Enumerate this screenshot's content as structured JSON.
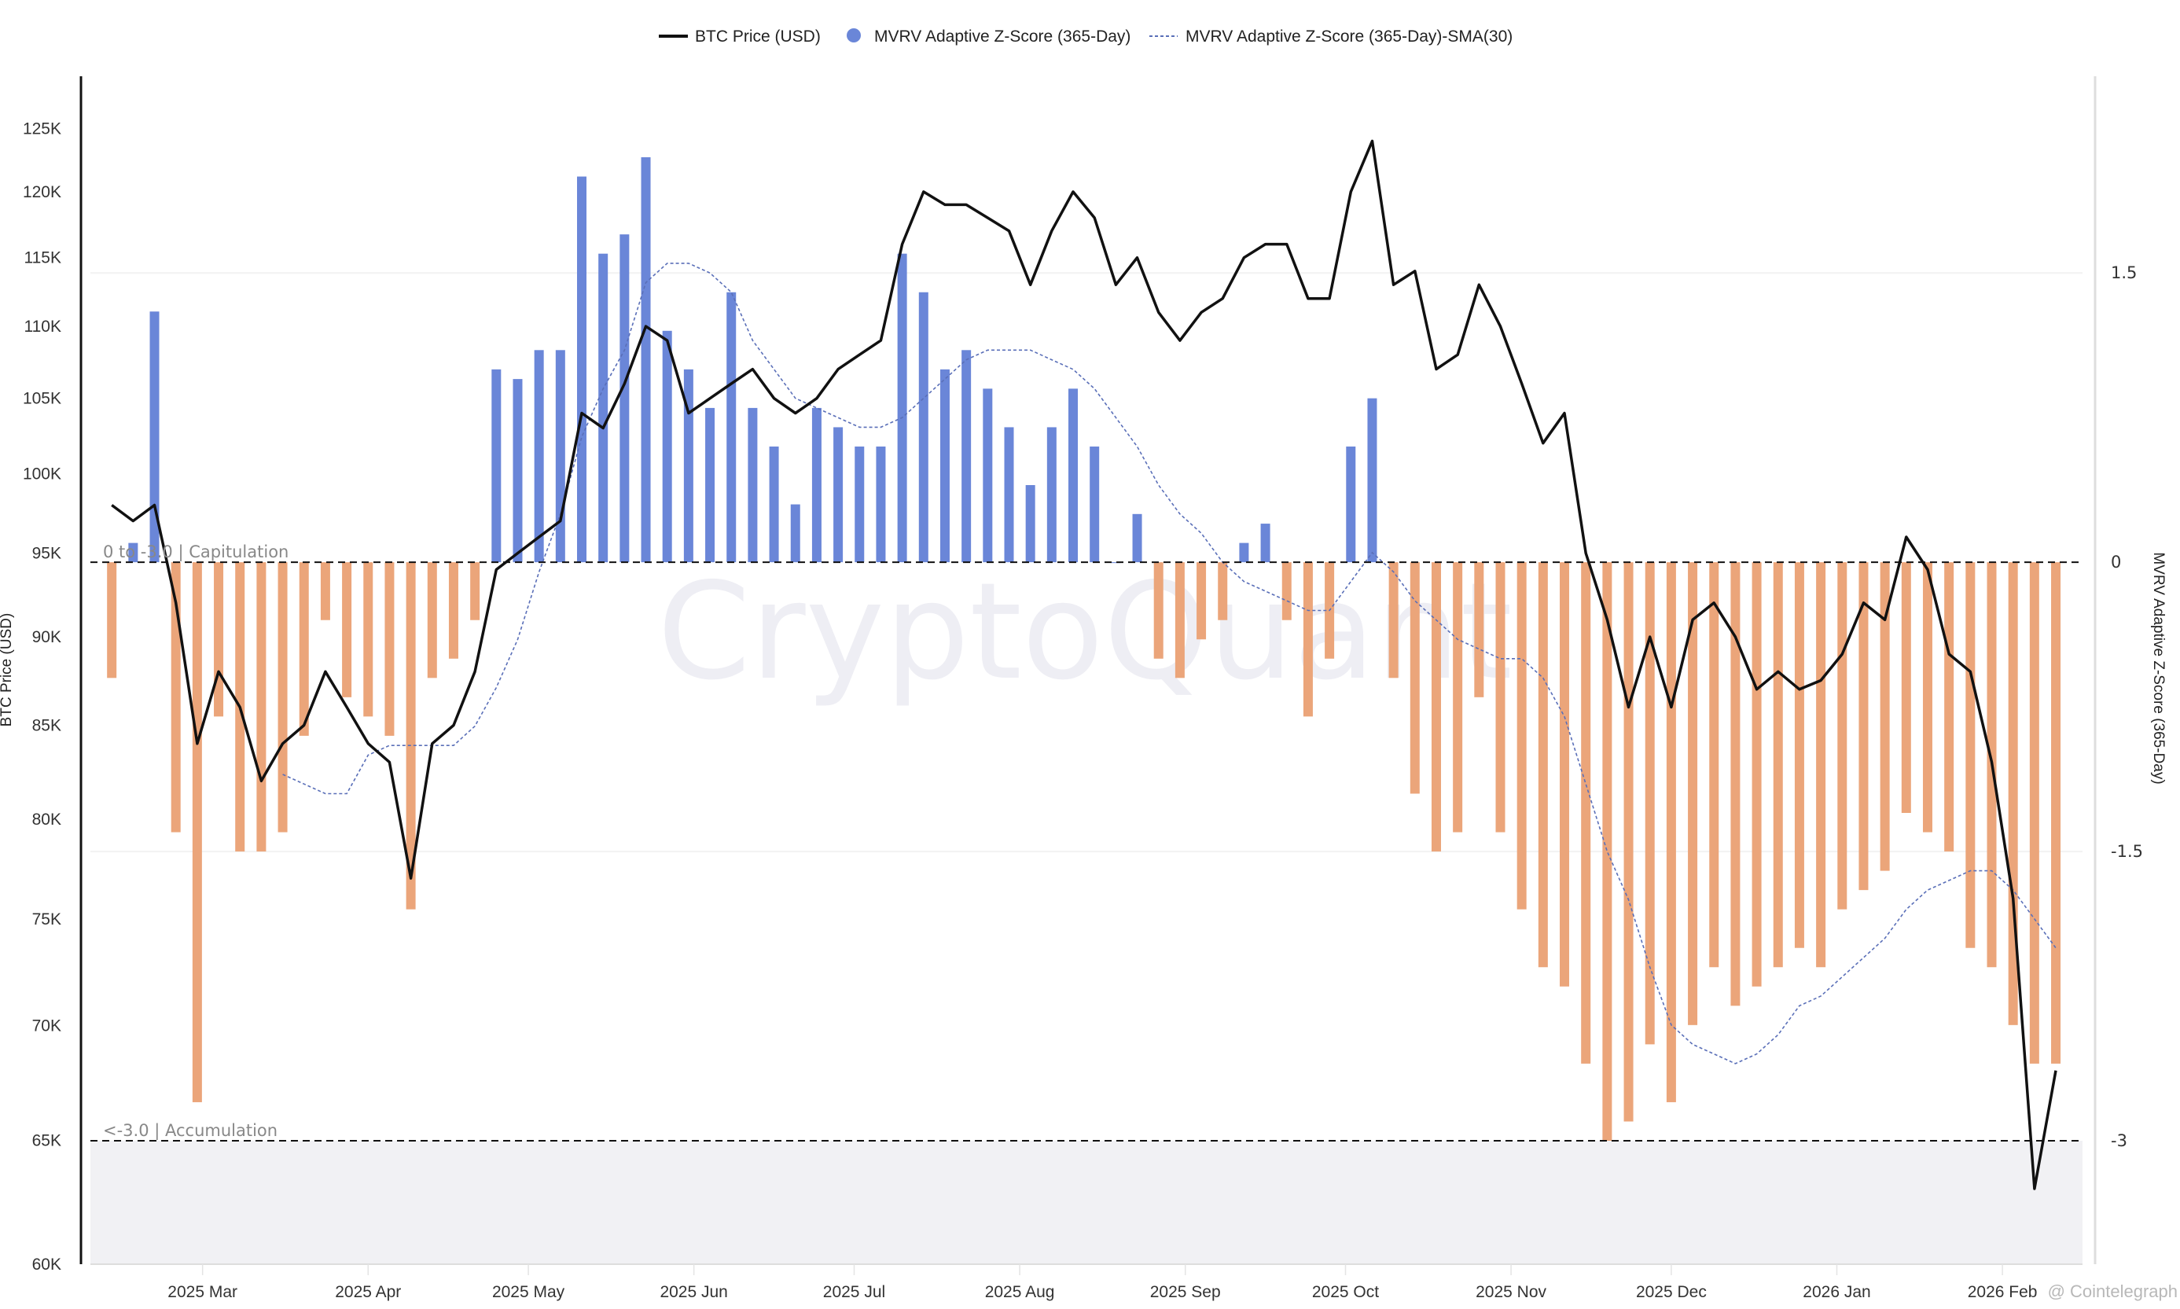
{
  "chart_data": {
    "type": "bar+line",
    "legend": {
      "placement": "top-center",
      "items": [
        "BTC Price (USD)",
        "MVRV Adaptive Z-Score (365-Day)",
        "MVRV Adaptive Z-Score (365-Day)-SMA(30)"
      ]
    },
    "y_left": {
      "label": "BTC Price (USD)",
      "scale": "log",
      "ylim": [
        60000,
        129300
      ],
      "ticks": [
        60000,
        65000,
        70000,
        75000,
        80000,
        85000,
        90000,
        95000,
        100000,
        105000,
        110000,
        115000,
        120000,
        125000
      ],
      "tick_labels": [
        "60K",
        "65K",
        "70K",
        "75K",
        "80K",
        "85K",
        "90K",
        "95K",
        "100K",
        "105K",
        "110K",
        "115K",
        "120K",
        "125K"
      ]
    },
    "y_right": {
      "label": "MVRV Adaptive Z-Score (365-Day)",
      "ylim": [
        -3.64,
        2.52
      ],
      "ticks": [
        1.5,
        0,
        -1.5,
        -3
      ],
      "tick_labels": [
        "1.5",
        "0",
        "-1.5",
        "-3"
      ]
    },
    "xlim": [
      "2025-02-08",
      "2026-02-16"
    ],
    "x_ticks": [
      "2025-03-01",
      "2025-04-01",
      "2025-05-01",
      "2025-06-01",
      "2025-07-01",
      "2025-08-01",
      "2025-09-01",
      "2025-10-01",
      "2025-11-01",
      "2025-12-01",
      "2026-01-01",
      "2026-02-01"
    ],
    "x_tick_labels": [
      "2025 Mar",
      "2025 Apr",
      "2025 May",
      "2025 Jun",
      "2025 Jul",
      "2025 Aug",
      "2025 Sep",
      "2025 Oct",
      "2025 Nov",
      "2025 Dec",
      "2026 Jan",
      "2026 Feb"
    ],
    "reference_lines": [
      {
        "value": 0,
        "label": "0 to -3.0 | Capitulation"
      },
      {
        "value": -3,
        "label": "<-3.0 | Accumulation",
        "shaded_below": true
      }
    ],
    "colors": {
      "price": "#111111",
      "zscore_positive": "#6a86d8",
      "zscore_negative": "#eba57a",
      "sma": "#5a6fb8",
      "shade": "#f1f1f4"
    },
    "x": [
      "2025-02-12",
      "2025-02-16",
      "2025-02-20",
      "2025-02-24",
      "2025-02-28",
      "2025-03-04",
      "2025-03-08",
      "2025-03-12",
      "2025-03-16",
      "2025-03-20",
      "2025-03-24",
      "2025-03-28",
      "2025-04-01",
      "2025-04-05",
      "2025-04-09",
      "2025-04-13",
      "2025-04-17",
      "2025-04-21",
      "2025-04-25",
      "2025-04-29",
      "2025-05-03",
      "2025-05-07",
      "2025-05-11",
      "2025-05-15",
      "2025-05-19",
      "2025-05-23",
      "2025-05-27",
      "2025-05-31",
      "2025-06-04",
      "2025-06-08",
      "2025-06-12",
      "2025-06-16",
      "2025-06-20",
      "2025-06-24",
      "2025-06-28",
      "2025-07-02",
      "2025-07-06",
      "2025-07-10",
      "2025-07-14",
      "2025-07-18",
      "2025-07-22",
      "2025-07-26",
      "2025-07-30",
      "2025-08-03",
      "2025-08-07",
      "2025-08-11",
      "2025-08-15",
      "2025-08-19",
      "2025-08-23",
      "2025-08-27",
      "2025-08-31",
      "2025-09-04",
      "2025-09-08",
      "2025-09-12",
      "2025-09-16",
      "2025-09-20",
      "2025-09-24",
      "2025-09-28",
      "2025-10-02",
      "2025-10-06",
      "2025-10-10",
      "2025-10-14",
      "2025-10-18",
      "2025-10-22",
      "2025-10-26",
      "2025-10-30",
      "2025-11-03",
      "2025-11-07",
      "2025-11-11",
      "2025-11-15",
      "2025-11-19",
      "2025-11-23",
      "2025-11-27",
      "2025-12-01",
      "2025-12-05",
      "2025-12-09",
      "2025-12-13",
      "2025-12-17",
      "2025-12-21",
      "2025-12-25",
      "2025-12-29",
      "2026-01-02",
      "2026-01-06",
      "2026-01-10",
      "2026-01-14",
      "2026-01-18",
      "2026-01-22",
      "2026-01-26",
      "2026-01-30",
      "2026-02-03",
      "2026-02-07",
      "2026-02-11"
    ],
    "series": [
      {
        "name": "BTC Price (USD)",
        "axis": "left",
        "type": "line",
        "values": [
          98000,
          97000,
          98000,
          92000,
          84000,
          88000,
          86000,
          82000,
          84000,
          85000,
          88000,
          86000,
          84000,
          83000,
          77000,
          84000,
          85000,
          88000,
          94000,
          95000,
          96000,
          97000,
          104000,
          103000,
          106000,
          110000,
          109000,
          104000,
          105000,
          106000,
          107000,
          105000,
          104000,
          105000,
          107000,
          108000,
          109000,
          116000,
          120000,
          119000,
          119000,
          118000,
          117000,
          113000,
          117000,
          120000,
          118000,
          113000,
          115000,
          111000,
          109000,
          111000,
          112000,
          115000,
          116000,
          116000,
          112000,
          112000,
          120000,
          124000,
          113000,
          114000,
          107000,
          108000,
          113000,
          110000,
          106000,
          102000,
          104000,
          95000,
          91000,
          86000,
          90000,
          86000,
          91000,
          92000,
          90000,
          87000,
          88000,
          87000,
          87500,
          89000,
          92000,
          91000,
          96000,
          94000,
          89000,
          88000,
          83000,
          76000,
          63000,
          68000
        ]
      },
      {
        "name": "MVRV Adaptive Z-Score (365-Day)",
        "axis": "right",
        "type": "bar",
        "values": [
          -0.6,
          0.1,
          1.3,
          -1.4,
          -2.8,
          -0.8,
          -1.5,
          -1.5,
          -1.4,
          -0.9,
          -0.3,
          -0.7,
          -0.8,
          -0.9,
          -1.8,
          -0.6,
          -0.5,
          -0.3,
          1.0,
          0.95,
          1.1,
          1.1,
          2.0,
          1.6,
          1.7,
          2.1,
          1.2,
          1.0,
          0.8,
          1.4,
          0.8,
          0.6,
          0.3,
          0.8,
          0.7,
          0.6,
          0.6,
          1.6,
          1.4,
          1.0,
          1.1,
          0.9,
          0.7,
          0.4,
          0.7,
          0.9,
          0.6,
          0.0,
          0.25,
          -0.5,
          -0.6,
          -0.4,
          -0.3,
          0.1,
          0.2,
          -0.3,
          -0.8,
          -0.5,
          0.6,
          0.85,
          -0.6,
          -1.2,
          -1.5,
          -1.4,
          -0.7,
          -1.4,
          -1.8,
          -2.1,
          -2.2,
          -2.6,
          -3.0,
          -2.9,
          -2.5,
          -2.8,
          -2.4,
          -2.1,
          -2.3,
          -2.2,
          -2.1,
          -2.0,
          -2.1,
          -1.8,
          -1.7,
          -1.6,
          -1.3,
          -1.4,
          -1.5,
          -2.0,
          -2.1,
          -2.4,
          -2.6,
          -2.6
        ]
      },
      {
        "name": "MVRV Adaptive Z-Score (365-Day)-SMA(30)",
        "axis": "right",
        "type": "line",
        "style": "dashed",
        "values": [
          null,
          null,
          null,
          null,
          null,
          null,
          null,
          null,
          -1.1,
          -1.15,
          -1.2,
          -1.2,
          -1.0,
          -0.95,
          -0.95,
          -0.95,
          -0.95,
          -0.85,
          -0.65,
          -0.4,
          -0.05,
          0.25,
          0.65,
          0.9,
          1.1,
          1.45,
          1.55,
          1.55,
          1.5,
          1.4,
          1.15,
          1.0,
          0.85,
          0.8,
          0.75,
          0.7,
          0.7,
          0.75,
          0.85,
          0.95,
          1.05,
          1.1,
          1.1,
          1.1,
          1.05,
          1.0,
          0.9,
          0.75,
          0.6,
          0.4,
          0.25,
          0.15,
          0.0,
          -0.1,
          -0.15,
          -0.2,
          -0.25,
          -0.25,
          -0.1,
          0.05,
          -0.05,
          -0.2,
          -0.3,
          -0.4,
          -0.45,
          -0.5,
          -0.5,
          -0.6,
          -0.8,
          -1.15,
          -1.5,
          -1.75,
          -2.1,
          -2.4,
          -2.5,
          -2.55,
          -2.6,
          -2.55,
          -2.45,
          -2.3,
          -2.25,
          -2.15,
          -2.05,
          -1.95,
          -1.8,
          -1.7,
          -1.65,
          -1.6,
          -1.6,
          -1.7,
          -1.85,
          -2.0
        ]
      }
    ]
  },
  "watermark": "CryptoQuant",
  "credit": "@ Cointelegraph"
}
